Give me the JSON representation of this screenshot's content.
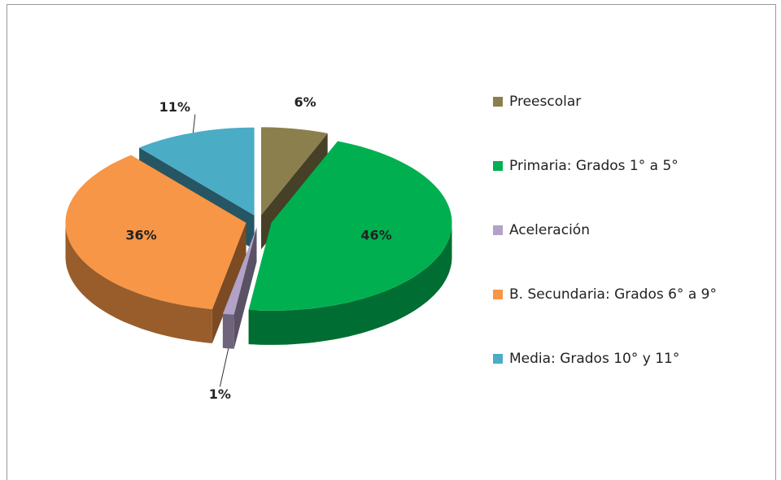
{
  "chart_data": {
    "type": "pie3d",
    "categories": [
      "Preescolar",
      "Primaria: Grados  1° a 5°",
      "Aceleración",
      "B. Secundaria: Grados 6° a 9°",
      "Media: Grados 10° y 11°"
    ],
    "values": [
      6,
      46,
      1,
      36,
      11
    ],
    "value_labels": [
      "6%",
      "46%",
      "1%",
      "36%",
      "11%"
    ],
    "colors": [
      "#8c7f4e",
      "#00b050",
      "#b3a2c7",
      "#f79646",
      "#4bacc6"
    ],
    "legend": "right"
  }
}
